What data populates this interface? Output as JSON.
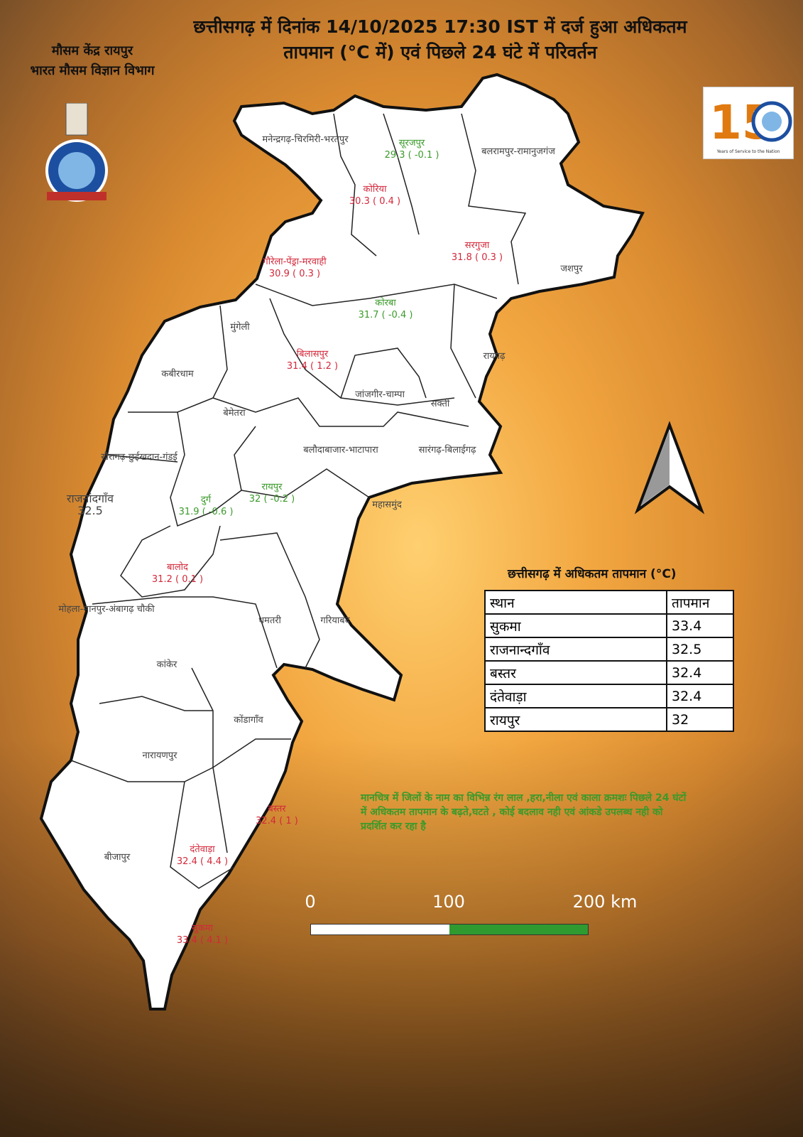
{
  "header": {
    "title_line1": "छत्तीसगढ़ में दिनांक 14/10/2025 17:30 IST में दर्ज हुआ अधिकतम",
    "title_line2": "तापमान (°C में) एवं पिछले 24 घंटे में परिवर्तन",
    "office_line1": "मौसम केंद्र रायपुर",
    "office_line2": "भारत मौसम विज्ञान विभाग"
  },
  "logos": {
    "imd_emblem": "भारत मौसम विज्ञान विभाग",
    "anniversary": "150 Years of Service to the Nation"
  },
  "colors": {
    "increase": "#d3283a",
    "decrease": "#3a9a2a",
    "no_change": "#1a5fd0",
    "no_data": "#444444"
  },
  "districts": [
    {
      "name": "मनेन्द्रगढ़-चिरमिरी-भरतपुर",
      "value": "",
      "status": "no_data"
    },
    {
      "name": "सूरजपुर",
      "value": "29.3 ( -0.1 )",
      "status": "decrease"
    },
    {
      "name": "बलरामपुर-रामानुजगंज",
      "value": "",
      "status": "no_data"
    },
    {
      "name": "कोरिया",
      "value": "30.3 ( 0.4 )",
      "status": "increase"
    },
    {
      "name": "सरगुजा",
      "value": "31.8 ( 0.3 )",
      "status": "increase"
    },
    {
      "name": "जशपुर",
      "value": "",
      "status": "no_data"
    },
    {
      "name": "गौरेला-पेंड्रा-मरवाही",
      "value": "30.9 ( 0.3 )",
      "status": "increase"
    },
    {
      "name": "कोरबा",
      "value": "31.7 ( -0.4 )",
      "status": "decrease"
    },
    {
      "name": "मुंगेली",
      "value": "",
      "status": "no_data"
    },
    {
      "name": "रायगढ़",
      "value": "",
      "status": "no_data"
    },
    {
      "name": "कबीरधाम",
      "value": "",
      "status": "no_data"
    },
    {
      "name": "बिलासपुर",
      "value": "31.4 ( 1.2 )",
      "status": "increase"
    },
    {
      "name": "जांजगीर-चाम्पा",
      "value": "",
      "status": "no_data"
    },
    {
      "name": "सक्ती",
      "value": "",
      "status": "no_data"
    },
    {
      "name": "बेमेतरा",
      "value": "",
      "status": "no_data"
    },
    {
      "name": "बलौदाबाजार-भाटापारा",
      "value": "",
      "status": "no_data"
    },
    {
      "name": "सारंगढ़-बिलाईगढ़",
      "value": "",
      "status": "no_data"
    },
    {
      "name": "खैरागढ़-छुईखदान-गंडई",
      "value": "",
      "status": "no_data"
    },
    {
      "name": "रायपुर",
      "value": "32 ( -0.2 )",
      "status": "decrease"
    },
    {
      "name": "राजनांदगाँव",
      "value": "32.5",
      "status": "no_data"
    },
    {
      "name": "दुर्ग",
      "value": "31.9 ( -0.6 )",
      "status": "decrease"
    },
    {
      "name": "महासमुंद",
      "value": "",
      "status": "no_data"
    },
    {
      "name": "बालोद",
      "value": "31.2 ( 0.1 )",
      "status": "increase"
    },
    {
      "name": "मोहला-मानपुर-अंबागढ़ चौकी",
      "value": "",
      "status": "no_data"
    },
    {
      "name": "धमतरी",
      "value": "",
      "status": "no_data"
    },
    {
      "name": "गरियाबंद",
      "value": "",
      "status": "no_data"
    },
    {
      "name": "कांकेर",
      "value": "",
      "status": "no_data"
    },
    {
      "name": "कोंडागाँव",
      "value": "",
      "status": "no_data"
    },
    {
      "name": "नारायणपुर",
      "value": "",
      "status": "no_data"
    },
    {
      "name": "बस्तर",
      "value": "32.4 ( 1 )",
      "status": "increase"
    },
    {
      "name": "बीजापुर",
      "value": "",
      "status": "no_data"
    },
    {
      "name": "दंतेवाड़ा",
      "value": "32.4 ( 4.4 )",
      "status": "increase"
    },
    {
      "name": "सुकमा",
      "value": "33.4 ( 4.1 )",
      "status": "increase"
    }
  ],
  "top_table": {
    "title": "छत्तीसगढ़ में  अधिकतम तापमान (°C)",
    "headers": [
      "स्थान",
      "तापमान"
    ],
    "rows": [
      [
        "सुकमा",
        "33.4"
      ],
      [
        "राजनान्दगाँव",
        "32.5"
      ],
      [
        "बस्तर",
        "32.4"
      ],
      [
        "दंतेवाड़ा",
        "32.4"
      ],
      [
        "रायपुर",
        "32"
      ]
    ]
  },
  "note": "मानचित्र में जिलों के नाम का विभिन्न रंग लाल ,हरा,नीला एवं काला  क्रमशः पिछले 24 घंटों में अधिकतम  तापमान के बढ़ते,घटते , कोई बदलाव नही एवं आंकडे उपलब्ध नही को प्रदर्शित कर रहा है",
  "scale": {
    "labels": [
      "0",
      "100",
      "200 km"
    ]
  },
  "north_arrow": "north-arrow"
}
